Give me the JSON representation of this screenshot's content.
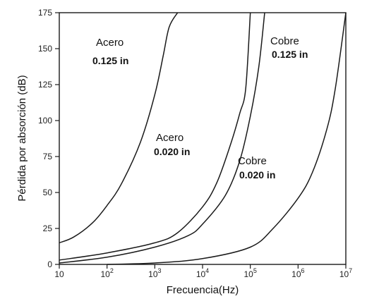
{
  "chart_data": {
    "type": "line",
    "xlabel": "Frecuencia(Hz)",
    "ylabel": "Pérdida por absorción (dB)",
    "x_scale": "log",
    "xlim": [
      10,
      10000000
    ],
    "ylim": [
      0,
      175
    ],
    "x_ticks": [
      {
        "base": "10",
        "exp": "",
        "value": 10
      },
      {
        "base": "10",
        "exp": "2",
        "value": 100
      },
      {
        "base": "10",
        "exp": "3",
        "value": 1000
      },
      {
        "base": "10",
        "exp": "4",
        "value": 10000
      },
      {
        "base": "10",
        "exp": "5",
        "value": 100000
      },
      {
        "base": "10",
        "exp": "6",
        "value": 1000000
      },
      {
        "base": "10",
        "exp": "7",
        "value": 10000000
      }
    ],
    "y_ticks": [
      "0",
      "25",
      "50",
      "75",
      "100",
      "125",
      "150",
      "175"
    ],
    "grid": false,
    "legend": "none",
    "line_color": "#1a1a1a",
    "series": [
      {
        "label_name": "Acero",
        "label_thickness": "0.125 in",
        "x": [
          10,
          20,
          50,
          100,
          200,
          500,
          1000,
          1500,
          2000,
          3000
        ],
        "y": [
          15,
          19,
          29,
          41,
          56,
          85,
          118,
          145,
          165,
          175
        ]
      },
      {
        "label_name": "Acero",
        "label_thickness": "0.020 in",
        "x": [
          10,
          100,
          1000,
          3000,
          10000,
          20000,
          40000,
          60000,
          80000,
          100000
        ],
        "y": [
          3,
          8,
          15,
          22,
          40,
          57,
          85,
          105,
          122,
          175
        ]
      },
      {
        "label_name": "Cobre",
        "label_thickness": "0.125 in",
        "x": [
          10,
          100,
          1000,
          5000,
          10000,
          30000,
          60000,
          100000,
          150000,
          200000
        ],
        "y": [
          1,
          5,
          12,
          20,
          28,
          48,
          72,
          103,
          137,
          175
        ]
      },
      {
        "label_name": "Cobre",
        "label_thickness": "0.020 in",
        "x": [
          100,
          1000,
          10000,
          100000,
          300000,
          1000000,
          2000000,
          4000000,
          6000000,
          10000000
        ],
        "y": [
          0,
          1,
          4,
          12,
          25,
          46,
          64,
          94,
          122,
          175
        ]
      }
    ]
  }
}
